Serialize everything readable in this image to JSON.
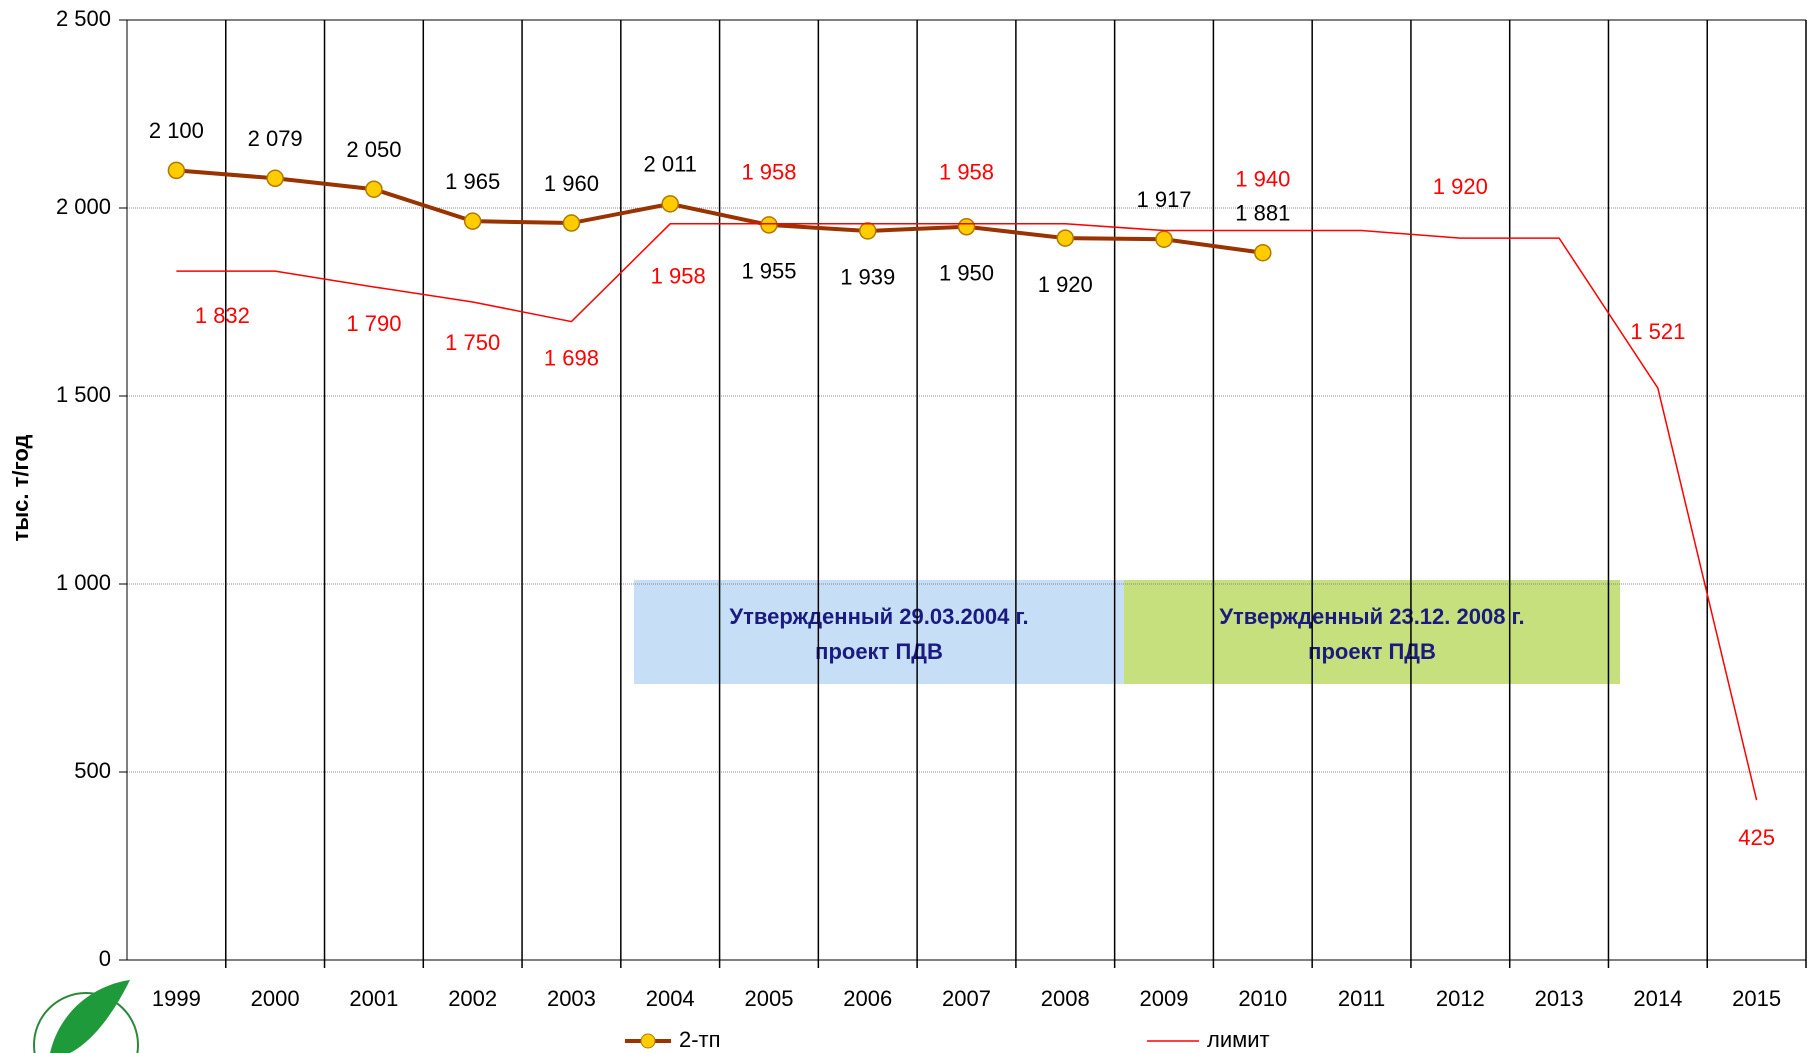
{
  "chart_data": {
    "type": "line",
    "y_label": "тыс. т/год",
    "categories": [
      "1999",
      "2000",
      "2001",
      "2002",
      "2003",
      "2004",
      "2005",
      "2006",
      "2007",
      "2008",
      "2009",
      "2010",
      "2011",
      "2012",
      "2013",
      "2014",
      "2015"
    ],
    "series": [
      {
        "name": "2-тп",
        "color": "#993300",
        "marker_color": "#FFCC00",
        "values": [
          2100,
          2079,
          2050,
          1965,
          1960,
          2011,
          1955,
          1939,
          1950,
          1920,
          1917,
          1881,
          null,
          null,
          null,
          null,
          null
        ],
        "value_labels": [
          "2 100",
          "2 079",
          "2 050",
          "1 965",
          "1 960",
          "2 011",
          "1 955",
          "1 939",
          "1 950",
          "1 920",
          "1 917",
          "1 881",
          null,
          null,
          null,
          null,
          null
        ]
      },
      {
        "name": "лимит",
        "color": "#FF0000",
        "values": [
          1832,
          1832,
          1790,
          1750,
          1698,
          1958,
          1958,
          1958,
          1958,
          1958,
          1940,
          1940,
          1940,
          1920,
          1920,
          1521,
          425
        ],
        "value_labels": [
          "1 832",
          null,
          "1 790",
          "1 750",
          "1 698",
          "1 958",
          "1 958",
          null,
          "1 958",
          null,
          null,
          "1 940",
          null,
          "1 920",
          null,
          "1 521",
          "425"
        ]
      }
    ],
    "ylim": [
      0,
      2500
    ],
    "yticks": [
      0,
      500,
      {
        "value": 1000,
        "label": "1 000"
      },
      {
        "value": 1500,
        "label": "1 500"
      },
      {
        "value": 2000,
        "label": "2 000"
      },
      {
        "value": 2500,
        "label": "2 500"
      }
    ],
    "grid": true,
    "legend": "bottom",
    "annotations": [
      {
        "lines": [
          "Утвержденный 29.03.2004 г.",
          "проект ПДВ"
        ],
        "color": "#C6DFF6"
      },
      {
        "lines": [
          "Утвержденный 23.12. 2008 г.",
          "проект ПДВ"
        ],
        "color": "#C5E07C"
      }
    ]
  }
}
